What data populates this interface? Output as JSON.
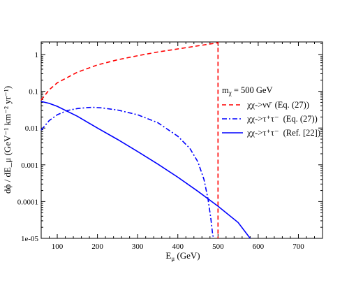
{
  "chart_data": {
    "type": "line",
    "xlim": [
      60,
      760
    ],
    "ylim": [
      1e-05,
      2.2
    ],
    "yscale": "log",
    "xticks": [
      100,
      200,
      300,
      400,
      500,
      600,
      700
    ],
    "yticks": [
      {
        "value": 1e-05,
        "label": "1e-05"
      },
      {
        "value": 0.0001,
        "label": "0.0001"
      },
      {
        "value": 0.001,
        "label": "0.001"
      },
      {
        "value": 0.01,
        "label": "0.01"
      },
      {
        "value": 0.1,
        "label": "0.1"
      },
      {
        "value": 1,
        "label": "1"
      }
    ],
    "xlabel": {
      "main": "E",
      "sub": "μ",
      "rest": " (GeV)"
    },
    "ylabel": "dϕ / dE_μ (GeV⁻¹ km⁻² yr⁻¹)",
    "legend_title": {
      "main": "m",
      "sub": "χ",
      "rest": " = 500 GeV"
    },
    "series": [
      {
        "label": {
          "process": "χχ->νν̄",
          "ref": "(Eq. (27))"
        },
        "color": "#ff0000",
        "dash": "dashed",
        "x": [
          60,
          80,
          100,
          150,
          200,
          250,
          300,
          350,
          400,
          450,
          495,
          500,
          500
        ],
        "y": [
          0.058,
          0.11,
          0.17,
          0.33,
          0.52,
          0.72,
          0.93,
          1.17,
          1.42,
          1.72,
          2.05,
          2.1,
          1e-05
        ]
      },
      {
        "label": {
          "process": "χχ->τ⁺τ⁻",
          "ref": "(Eq. (27))"
        },
        "color": "#0000ff",
        "dash": "dashdot",
        "x": [
          60,
          80,
          100,
          125,
          150,
          175,
          190,
          210,
          250,
          300,
          350,
          400,
          430,
          450,
          465,
          475,
          482,
          487,
          490
        ],
        "y": [
          0.0088,
          0.016,
          0.023,
          0.03,
          0.034,
          0.036,
          0.0365,
          0.0355,
          0.031,
          0.023,
          0.014,
          0.006,
          0.0028,
          0.0012,
          0.0004,
          0.00012,
          3.5e-05,
          1.2e-05,
          1e-05
        ]
      },
      {
        "label": {
          "process": "χχ->τ⁺τ⁻",
          "ref": "(Ref. [22])"
        },
        "color": "#0000ff",
        "dash": "solid",
        "x": [
          60,
          80,
          100,
          150,
          200,
          250,
          300,
          350,
          400,
          450,
          500,
          550,
          580
        ],
        "y": [
          0.053,
          0.047,
          0.039,
          0.021,
          0.01,
          0.0049,
          0.0023,
          0.00105,
          0.00046,
          0.00019,
          7.5e-05,
          2.7e-05,
          1e-05
        ]
      }
    ]
  }
}
